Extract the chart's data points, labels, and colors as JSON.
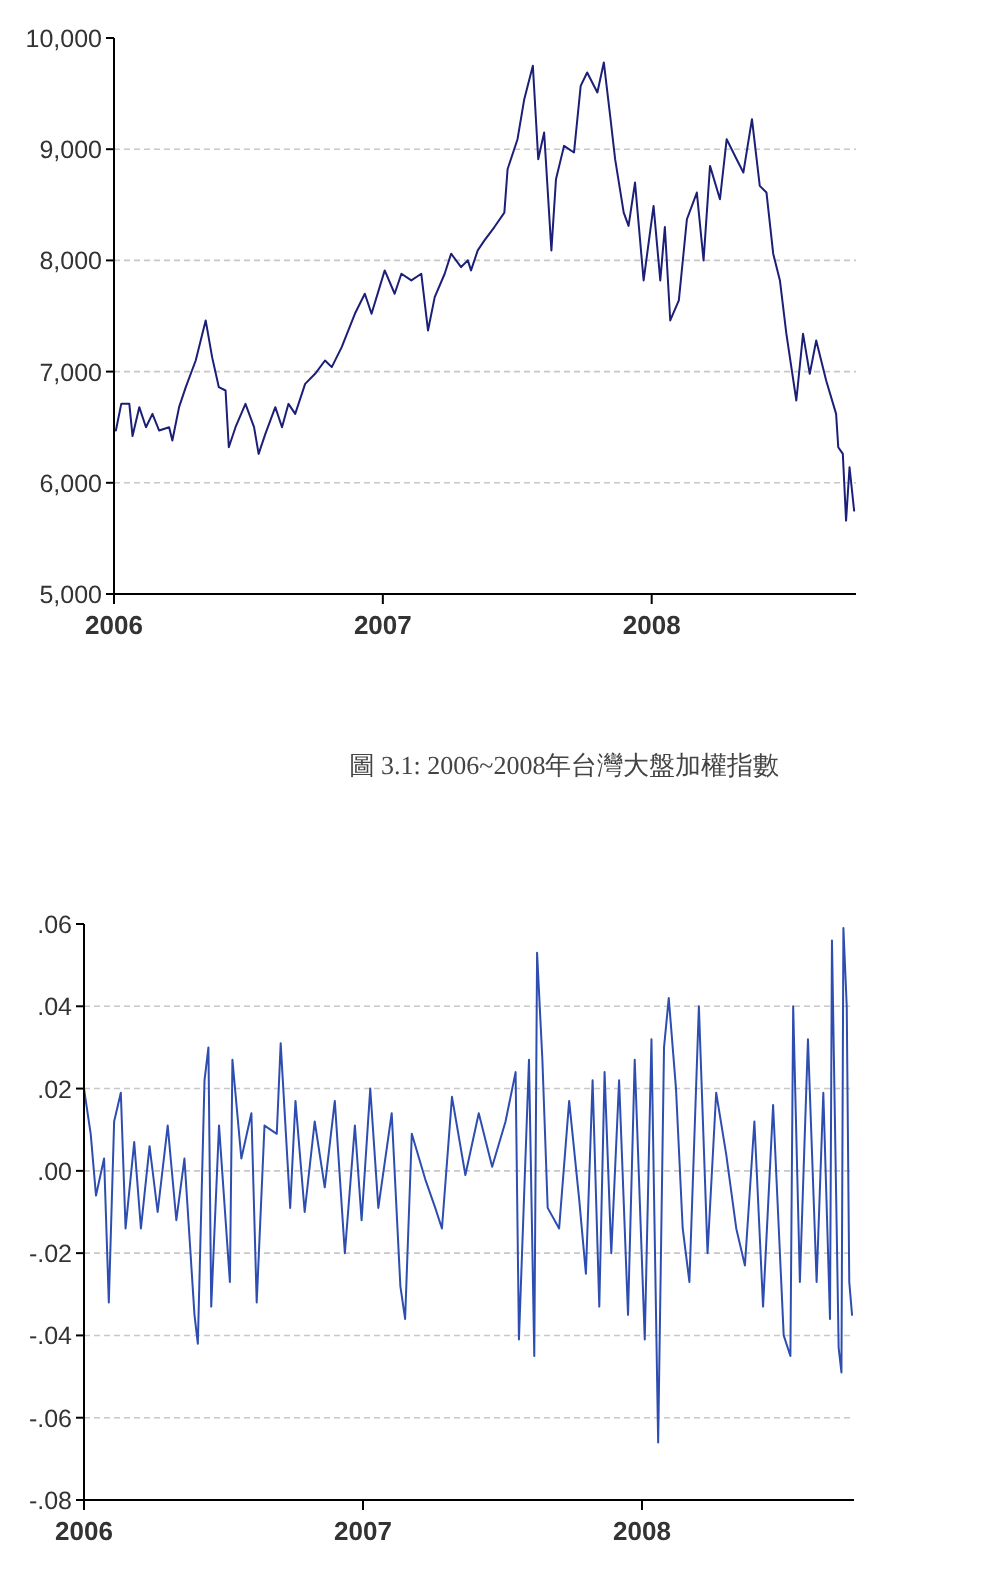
{
  "chart_data": [
    {
      "type": "line",
      "annotations": [
        "圖 3.1: 2006~2008年台灣大盤加權指數"
      ],
      "grid": "y",
      "xlim": [
        2006,
        2008.76
      ],
      "xticks": [
        2006,
        2007,
        2008
      ],
      "ylim": [
        5000,
        10000
      ],
      "yticks": [
        {
          "value": 5000,
          "label": "5,000"
        },
        {
          "value": 6000,
          "label": "6,000"
        },
        {
          "value": 7000,
          "label": "7,000"
        },
        {
          "value": 8000,
          "label": "8,000"
        },
        {
          "value": 9000,
          "label": "9,000"
        },
        {
          "value": 10000,
          "label": "10,000"
        }
      ],
      "series": [
        {
          "color": "#1c1f78",
          "x": [
            2006.007,
            2006.027,
            2006.057,
            2006.069,
            2006.094,
            2006.119,
            2006.143,
            2006.168,
            2006.205,
            2006.217,
            2006.242,
            2006.267,
            2006.304,
            2006.341,
            2006.365,
            2006.39,
            2006.415,
            2006.427,
            2006.452,
            2006.489,
            2006.521,
            2006.538,
            2006.563,
            2006.6,
            2006.625,
            2006.649,
            2006.674,
            2006.711,
            2006.748,
            2006.785,
            2006.81,
            2006.847,
            2006.896,
            2006.933,
            2006.958,
            2007.007,
            2007.044,
            2007.069,
            2007.106,
            2007.143,
            2007.168,
            2007.193,
            2007.23,
            2007.254,
            2007.291,
            2007.316,
            2007.328,
            2007.353,
            2007.378,
            2007.415,
            2007.452,
            2007.464,
            2007.501,
            2007.526,
            2007.558,
            2007.578,
            2007.6,
            2007.627,
            2007.644,
            2007.674,
            2007.711,
            2007.736,
            2007.76,
            2007.798,
            2007.822,
            2007.847,
            2007.864,
            2007.896,
            2007.914,
            2007.938,
            2007.97,
            2008.007,
            2008.032,
            2008.049,
            2008.069,
            2008.101,
            2008.131,
            2008.168,
            2008.193,
            2008.217,
            2008.254,
            2008.279,
            2008.316,
            2008.341,
            2008.373,
            2008.402,
            2008.427,
            2008.452,
            2008.477,
            2008.501,
            2008.538,
            2008.563,
            2008.588,
            2008.612,
            2008.649,
            2008.686,
            2008.694,
            2008.711,
            2008.723,
            2008.736,
            2008.753
          ],
          "values": [
            6470,
            6710,
            6710,
            6420,
            6680,
            6500,
            6620,
            6470,
            6500,
            6380,
            6680,
            6860,
            7100,
            7460,
            7130,
            6860,
            6830,
            6320,
            6500,
            6710,
            6500,
            6260,
            6440,
            6680,
            6500,
            6710,
            6620,
            6890,
            6980,
            7100,
            7040,
            7220,
            7520,
            7700,
            7520,
            7910,
            7700,
            7880,
            7820,
            7880,
            7370,
            7670,
            7880,
            8060,
            7940,
            8000,
            7910,
            8090,
            8180,
            8300,
            8430,
            8820,
            9090,
            9450,
            9750,
            8910,
            9150,
            8090,
            8730,
            9030,
            8970,
            9570,
            9690,
            9510,
            9780,
            9270,
            8910,
            8430,
            8310,
            8700,
            7820,
            8490,
            7820,
            8300,
            7460,
            7640,
            8370,
            8610,
            8000,
            8850,
            8550,
            9090,
            8910,
            8790,
            9270,
            8670,
            8610,
            8060,
            7820,
            7340,
            6740,
            7340,
            6980,
            7280,
            6920,
            6620,
            6320,
            6260,
            5660,
            6140,
            5750
          ]
        }
      ]
    },
    {
      "type": "line",
      "grid": "y",
      "xlim": [
        2006,
        2008.76
      ],
      "xticks": [
        2006,
        2007,
        2008
      ],
      "ylim": [
        -0.08,
        0.06
      ],
      "yticks": [
        {
          "value": -0.08,
          "label": "-.08"
        },
        {
          "value": -0.06,
          "label": "-.06"
        },
        {
          "value": -0.04,
          "label": "-.04"
        },
        {
          "value": -0.02,
          "label": "-.02"
        },
        {
          "value": 0,
          "label": ".00"
        },
        {
          "value": 0.02,
          "label": ".02"
        },
        {
          "value": 0.04,
          "label": ".04"
        },
        {
          "value": 0.06,
          "label": ".06"
        }
      ],
      "series": [
        {
          "color": "#2e4db0",
          "x": [
            2006.0,
            2006.024,
            2006.043,
            2006.072,
            2006.089,
            2006.108,
            2006.132,
            2006.149,
            2006.18,
            2006.204,
            2006.235,
            2006.264,
            2006.3,
            2006.331,
            2006.36,
            2006.396,
            2006.408,
            2006.432,
            2006.446,
            2006.456,
            2006.484,
            2006.523,
            2006.532,
            2006.564,
            2006.6,
            2006.619,
            2006.647,
            2006.691,
            2006.705,
            2006.739,
            2006.758,
            2006.791,
            2006.827,
            2006.863,
            2006.899,
            2006.935,
            2006.971,
            2006.995,
            2007.026,
            2007.055,
            2007.103,
            2007.134,
            2007.151,
            2007.175,
            2007.223,
            2007.259,
            2007.283,
            2007.319,
            2007.367,
            2007.415,
            2007.463,
            2007.511,
            2007.547,
            2007.559,
            2007.595,
            2007.614,
            2007.624,
            2007.643,
            2007.662,
            2007.703,
            2007.739,
            2007.775,
            2007.799,
            2007.823,
            2007.847,
            2007.866,
            2007.89,
            2007.918,
            2007.95,
            2007.974,
            2008.01,
            2008.034,
            2008.058,
            2008.079,
            2008.096,
            2008.122,
            2008.146,
            2008.17,
            2008.204,
            2008.235,
            2008.266,
            2008.302,
            2008.338,
            2008.369,
            2008.403,
            2008.434,
            2008.47,
            2008.508,
            2008.532,
            2008.542,
            2008.566,
            2008.595,
            2008.626,
            2008.65,
            2008.674,
            2008.681,
            2008.705,
            2008.715,
            2008.722,
            2008.734,
            2008.743,
            2008.753
          ],
          "values": [
            0.02,
            0.009,
            -0.006,
            0.003,
            -0.032,
            0.012,
            0.019,
            -0.014,
            0.007,
            -0.014,
            0.006,
            -0.01,
            0.011,
            -0.012,
            0.003,
            -0.035,
            -0.042,
            0.022,
            0.03,
            -0.033,
            0.011,
            -0.027,
            0.027,
            0.003,
            0.014,
            -0.032,
            0.011,
            0.009,
            0.031,
            -0.009,
            0.017,
            -0.01,
            0.012,
            -0.004,
            0.017,
            -0.02,
            0.011,
            -0.012,
            0.02,
            -0.009,
            0.014,
            -0.028,
            -0.036,
            0.009,
            -0.002,
            -0.009,
            -0.014,
            0.018,
            -0.001,
            0.014,
            0.001,
            0.012,
            0.024,
            -0.041,
            0.027,
            -0.045,
            0.053,
            0.027,
            -0.009,
            -0.014,
            0.017,
            -0.007,
            -0.025,
            0.022,
            -0.033,
            0.024,
            -0.02,
            0.022,
            -0.035,
            0.027,
            -0.041,
            0.032,
            -0.066,
            0.03,
            0.042,
            0.02,
            -0.014,
            -0.027,
            0.04,
            -0.02,
            0.019,
            0.004,
            -0.014,
            -0.023,
            0.012,
            -0.033,
            0.016,
            -0.04,
            -0.045,
            0.04,
            -0.027,
            0.032,
            -0.027,
            0.019,
            -0.036,
            0.056,
            -0.043,
            -0.049,
            0.059,
            0.04,
            -0.027,
            -0.035
          ]
        }
      ]
    }
  ]
}
